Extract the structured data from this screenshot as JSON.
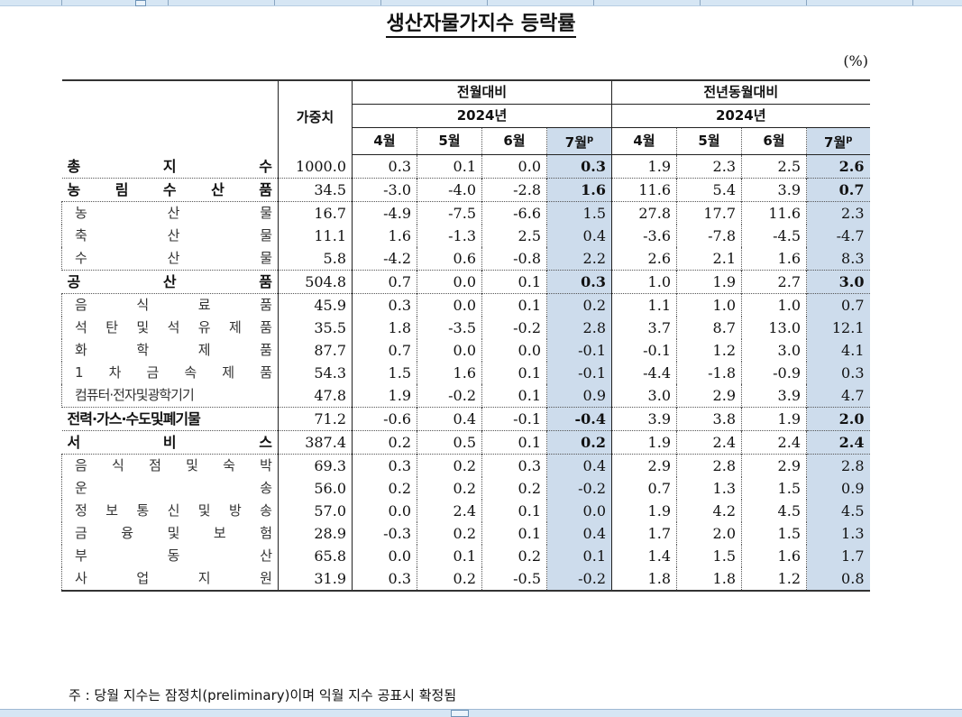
{
  "title": "생산자물가지수 등락률",
  "unit": "(%)",
  "header": {
    "weight": "가중치",
    "group_mom": "전월대비",
    "group_yoy": "전년동월대비",
    "year_mom": "2024년",
    "year_yoy": "2024년",
    "months": [
      "4월",
      "5월",
      "6월",
      "7월"
    ],
    "prelim_mark": "p"
  },
  "rows": [
    {
      "label": "총 지 수",
      "chars": [
        "총",
        "지",
        "수"
      ],
      "level": "major",
      "weight": "1000.0",
      "mom": [
        "0.3",
        "0.1",
        "0.0",
        "0.3"
      ],
      "yoy": [
        "1.9",
        "2.3",
        "2.5",
        "2.6"
      ]
    },
    {
      "label": "농림수산품",
      "chars": [
        "농",
        "림",
        "수",
        "산",
        "품"
      ],
      "level": "major",
      "weight": "34.5",
      "mom": [
        "-3.0",
        "-4.0",
        "-2.8",
        "1.6"
      ],
      "yoy": [
        "11.6",
        "5.4",
        "3.9",
        "0.7"
      ]
    },
    {
      "label": "농산물",
      "chars": [
        "농",
        "산",
        "물"
      ],
      "level": "minor",
      "weight": "16.7",
      "mom": [
        "-4.9",
        "-7.5",
        "-6.6",
        "1.5"
      ],
      "yoy": [
        "27.8",
        "17.7",
        "11.6",
        "2.3"
      ]
    },
    {
      "label": "축산물",
      "chars": [
        "축",
        "산",
        "물"
      ],
      "level": "minor",
      "weight": "11.1",
      "mom": [
        "1.6",
        "-1.3",
        "2.5",
        "0.4"
      ],
      "yoy": [
        "-3.6",
        "-7.8",
        "-4.5",
        "-4.7"
      ]
    },
    {
      "label": "수산물",
      "chars": [
        "수",
        "산",
        "물"
      ],
      "level": "minor",
      "weight": "5.8",
      "mom": [
        "-4.2",
        "0.6",
        "-0.8",
        "2.2"
      ],
      "yoy": [
        "2.6",
        "2.1",
        "1.6",
        "8.3"
      ]
    },
    {
      "label": "공산품",
      "chars": [
        "공",
        "산",
        "품"
      ],
      "level": "major",
      "weight": "504.8",
      "mom": [
        "0.7",
        "0.0",
        "0.1",
        "0.3"
      ],
      "yoy": [
        "1.0",
        "1.9",
        "2.7",
        "3.0"
      ]
    },
    {
      "label": "음식료품",
      "chars": [
        "음",
        "식",
        "료",
        "품"
      ],
      "level": "minor",
      "weight": "45.9",
      "mom": [
        "0.3",
        "0.0",
        "0.1",
        "0.2"
      ],
      "yoy": [
        "1.1",
        "1.0",
        "1.0",
        "0.7"
      ]
    },
    {
      "label": "석탄및석유제품",
      "chars": [
        "석",
        "탄",
        "및",
        "석",
        "유",
        "제",
        "품"
      ],
      "level": "minor",
      "weight": "35.5",
      "mom": [
        "1.8",
        "-3.5",
        "-0.2",
        "2.8"
      ],
      "yoy": [
        "3.7",
        "8.7",
        "13.0",
        "12.1"
      ]
    },
    {
      "label": "화학제품",
      "chars": [
        "화",
        "학",
        "제",
        "품"
      ],
      "level": "minor",
      "weight": "87.7",
      "mom": [
        "0.7",
        "0.0",
        "0.0",
        "-0.1"
      ],
      "yoy": [
        "-0.1",
        "1.2",
        "3.0",
        "4.1"
      ]
    },
    {
      "label": "1차금속제품",
      "chars": [
        "1",
        "차",
        "금",
        "속",
        "제",
        "품"
      ],
      "level": "minor",
      "weight": "54.3",
      "mom": [
        "1.5",
        "1.6",
        "0.1",
        "-0.1"
      ],
      "yoy": [
        "-4.4",
        "-1.8",
        "-0.9",
        "0.3"
      ]
    },
    {
      "label": "컴퓨터·전자및광학기기",
      "chars": [
        "컴퓨터·전자및광학기기"
      ],
      "level": "minor",
      "weight": "47.8",
      "mom": [
        "1.9",
        "-0.2",
        "0.1",
        "0.9"
      ],
      "yoy": [
        "3.0",
        "2.9",
        "3.9",
        "4.7"
      ]
    },
    {
      "label": "전력·가스·수도및폐기물",
      "chars": [
        "전력·가스·수도및폐기물"
      ],
      "level": "major",
      "weight": "71.2",
      "mom": [
        "-0.6",
        "0.4",
        "-0.1",
        "-0.4"
      ],
      "yoy": [
        "3.9",
        "3.8",
        "1.9",
        "2.0"
      ]
    },
    {
      "label": "서비스",
      "chars": [
        "서",
        "비",
        "스"
      ],
      "level": "major",
      "weight": "387.4",
      "mom": [
        "0.2",
        "0.5",
        "0.1",
        "0.2"
      ],
      "yoy": [
        "1.9",
        "2.4",
        "2.4",
        "2.4"
      ]
    },
    {
      "label": "음식점및숙박",
      "chars": [
        "음",
        "식",
        "점",
        "및",
        "숙",
        "박"
      ],
      "level": "minor",
      "weight": "69.3",
      "mom": [
        "0.3",
        "0.2",
        "0.3",
        "0.4"
      ],
      "yoy": [
        "2.9",
        "2.8",
        "2.9",
        "2.8"
      ]
    },
    {
      "label": "운송",
      "chars": [
        "운",
        "송"
      ],
      "level": "minor",
      "weight": "56.0",
      "mom": [
        "0.2",
        "0.2",
        "0.2",
        "-0.2"
      ],
      "yoy": [
        "0.7",
        "1.3",
        "1.5",
        "0.9"
      ]
    },
    {
      "label": "정보통신및방송",
      "chars": [
        "정",
        "보",
        "통",
        "신",
        "및",
        "방",
        "송"
      ],
      "level": "minor",
      "weight": "57.0",
      "mom": [
        "0.0",
        "2.4",
        "0.1",
        "0.0"
      ],
      "yoy": [
        "1.9",
        "4.2",
        "4.5",
        "4.5"
      ]
    },
    {
      "label": "금융및보험",
      "chars": [
        "금",
        "융",
        "및",
        "보",
        "험"
      ],
      "level": "minor",
      "weight": "28.9",
      "mom": [
        "-0.3",
        "0.2",
        "0.1",
        "0.4"
      ],
      "yoy": [
        "1.7",
        "2.0",
        "1.5",
        "1.3"
      ]
    },
    {
      "label": "부동산",
      "chars": [
        "부",
        "동",
        "산"
      ],
      "level": "minor",
      "weight": "65.8",
      "mom": [
        "0.0",
        "0.1",
        "0.2",
        "0.1"
      ],
      "yoy": [
        "1.4",
        "1.5",
        "1.6",
        "1.7"
      ]
    },
    {
      "label": "사업지원",
      "chars": [
        "사",
        "업",
        "지",
        "원"
      ],
      "level": "minor",
      "weight": "31.9",
      "mom": [
        "0.3",
        "0.2",
        "-0.5",
        "-0.2"
      ],
      "yoy": [
        "1.8",
        "1.8",
        "1.2",
        "0.8"
      ]
    }
  ],
  "footnote": "주 : 당월 지수는 잠정치(preliminary)이며 익월 지수 공표시 확정됨",
  "colors": {
    "highlight_column": "#cddcec",
    "ruler": "#d6e6f4"
  }
}
